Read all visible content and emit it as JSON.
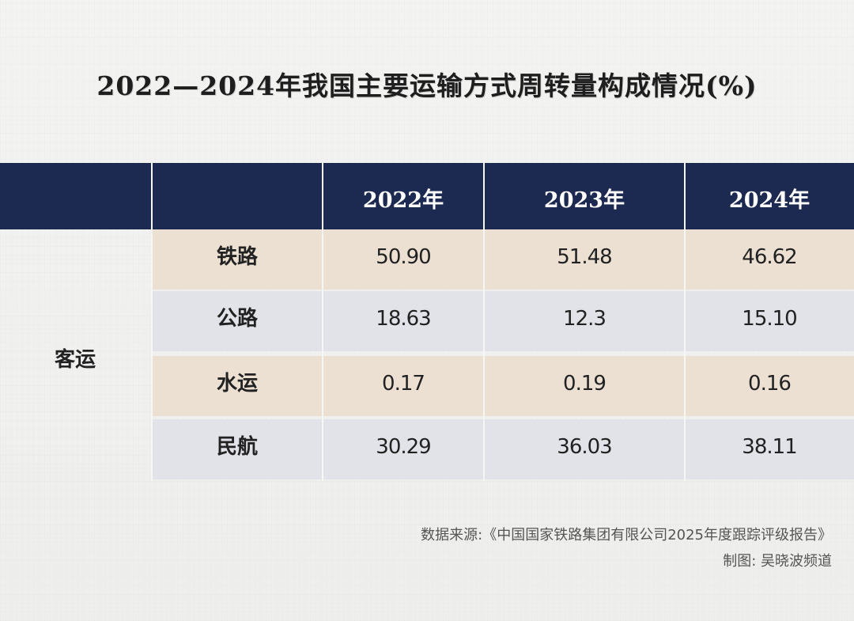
{
  "title": "2022—2024年我国主要运输方式周转量构成情况(%)",
  "chart_data": {
    "type": "table",
    "columns": [
      "2022年",
      "2023年",
      "2024年"
    ],
    "group": "客运",
    "rows": [
      {
        "label": "铁路",
        "values": [
          "50.90",
          "51.48",
          "46.62"
        ]
      },
      {
        "label": "公路",
        "values": [
          "18.63",
          "12.3",
          "15.10"
        ]
      },
      {
        "label": "水运",
        "values": [
          "0.17",
          "0.19",
          "0.16"
        ]
      },
      {
        "label": "民航",
        "values": [
          "30.29",
          "36.03",
          "38.11"
        ]
      }
    ]
  },
  "source": {
    "line1": "数据来源:《中国国家铁路集团有限公司2025年度跟踪评级报告》",
    "line2": "制图: 吴晓波频道"
  },
  "colors": {
    "header": "#1c2a52",
    "row_tan": "#ece0d3",
    "row_grey": "#e2e3e9"
  }
}
